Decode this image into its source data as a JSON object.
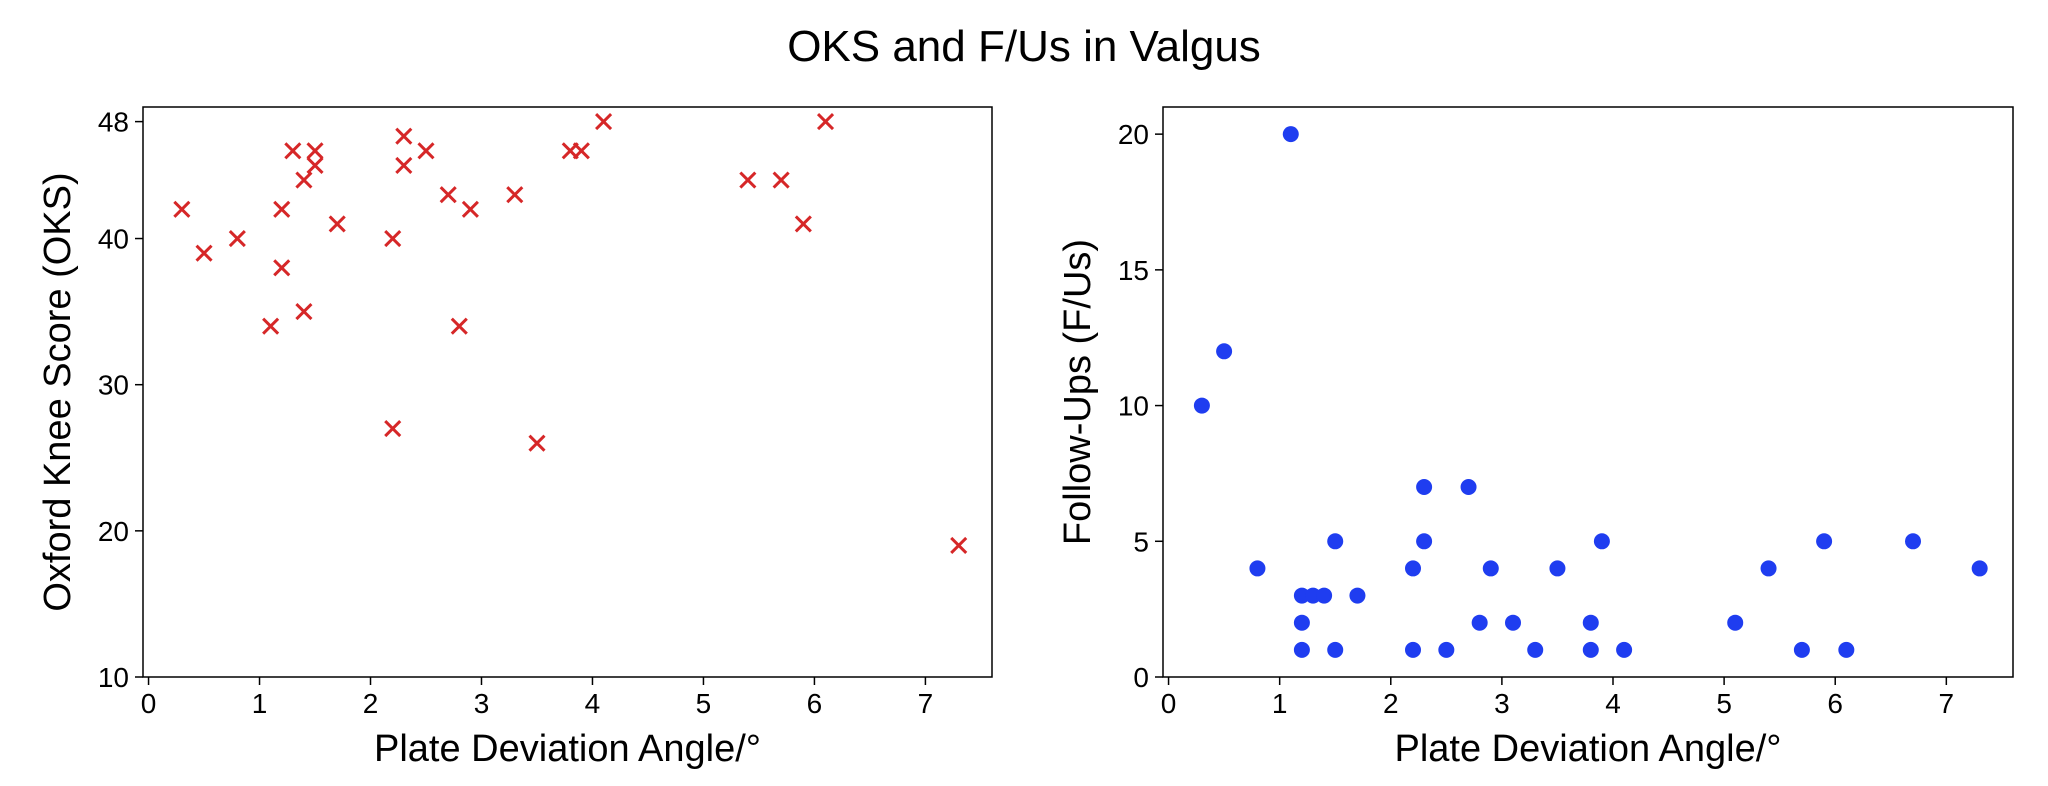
{
  "suptitle": "OKS and F/Us in Valgus",
  "chart_data": [
    {
      "type": "scatter",
      "xlabel": "Plate Deviation Angle/°",
      "ylabel": "Oxford Knee Score (OKS)",
      "xlim": [
        -0.05,
        7.6
      ],
      "ylim": [
        10,
        49
      ],
      "xticks": [
        0,
        1,
        2,
        3,
        4,
        5,
        6,
        7
      ],
      "yticks": [
        10,
        20,
        30,
        40,
        48
      ],
      "marker": "x",
      "color": "#d62728",
      "grid": false,
      "points": [
        {
          "x": 0.3,
          "y": 42
        },
        {
          "x": 0.5,
          "y": 39
        },
        {
          "x": 0.8,
          "y": 40
        },
        {
          "x": 1.1,
          "y": 34
        },
        {
          "x": 1.2,
          "y": 38
        },
        {
          "x": 1.2,
          "y": 42
        },
        {
          "x": 1.3,
          "y": 46
        },
        {
          "x": 1.4,
          "y": 35
        },
        {
          "x": 1.4,
          "y": 44
        },
        {
          "x": 1.5,
          "y": 45
        },
        {
          "x": 1.5,
          "y": 46
        },
        {
          "x": 1.7,
          "y": 41
        },
        {
          "x": 2.2,
          "y": 27
        },
        {
          "x": 2.2,
          "y": 40
        },
        {
          "x": 2.3,
          "y": 45
        },
        {
          "x": 2.3,
          "y": 47
        },
        {
          "x": 2.5,
          "y": 46
        },
        {
          "x": 2.7,
          "y": 43
        },
        {
          "x": 2.8,
          "y": 34
        },
        {
          "x": 2.9,
          "y": 42
        },
        {
          "x": 3.3,
          "y": 43
        },
        {
          "x": 3.5,
          "y": 26
        },
        {
          "x": 3.8,
          "y": 46
        },
        {
          "x": 3.9,
          "y": 46
        },
        {
          "x": 4.1,
          "y": 48
        },
        {
          "x": 5.4,
          "y": 44
        },
        {
          "x": 5.7,
          "y": 44
        },
        {
          "x": 5.9,
          "y": 41
        },
        {
          "x": 6.1,
          "y": 48
        },
        {
          "x": 7.3,
          "y": 19
        }
      ]
    },
    {
      "type": "scatter",
      "xlabel": "Plate Deviation Angle/°",
      "ylabel": "Follow-Ups (F/Us)",
      "xlim": [
        -0.05,
        7.6
      ],
      "ylim": [
        0,
        21
      ],
      "xticks": [
        0,
        1,
        2,
        3,
        4,
        5,
        6,
        7
      ],
      "yticks": [
        0,
        5,
        10,
        15,
        20
      ],
      "marker": "o",
      "color": "#1f3df0",
      "grid": false,
      "points": [
        {
          "x": 0.3,
          "y": 10
        },
        {
          "x": 0.5,
          "y": 12
        },
        {
          "x": 0.8,
          "y": 4
        },
        {
          "x": 1.1,
          "y": 20
        },
        {
          "x": 1.2,
          "y": 1
        },
        {
          "x": 1.2,
          "y": 2
        },
        {
          "x": 1.2,
          "y": 3
        },
        {
          "x": 1.3,
          "y": 3
        },
        {
          "x": 1.4,
          "y": 3
        },
        {
          "x": 1.5,
          "y": 5
        },
        {
          "x": 1.5,
          "y": 1
        },
        {
          "x": 1.7,
          "y": 3
        },
        {
          "x": 2.2,
          "y": 4
        },
        {
          "x": 2.2,
          "y": 1
        },
        {
          "x": 2.3,
          "y": 7
        },
        {
          "x": 2.3,
          "y": 5
        },
        {
          "x": 2.5,
          "y": 1
        },
        {
          "x": 2.7,
          "y": 7
        },
        {
          "x": 2.8,
          "y": 2
        },
        {
          "x": 2.9,
          "y": 4
        },
        {
          "x": 3.1,
          "y": 2
        },
        {
          "x": 3.3,
          "y": 1
        },
        {
          "x": 3.5,
          "y": 4
        },
        {
          "x": 3.8,
          "y": 2
        },
        {
          "x": 3.8,
          "y": 1
        },
        {
          "x": 3.9,
          "y": 5
        },
        {
          "x": 4.1,
          "y": 1
        },
        {
          "x": 5.1,
          "y": 2
        },
        {
          "x": 5.4,
          "y": 4
        },
        {
          "x": 5.7,
          "y": 1
        },
        {
          "x": 5.9,
          "y": 5
        },
        {
          "x": 6.1,
          "y": 1
        },
        {
          "x": 6.7,
          "y": 5
        },
        {
          "x": 7.3,
          "y": 4
        }
      ]
    }
  ]
}
